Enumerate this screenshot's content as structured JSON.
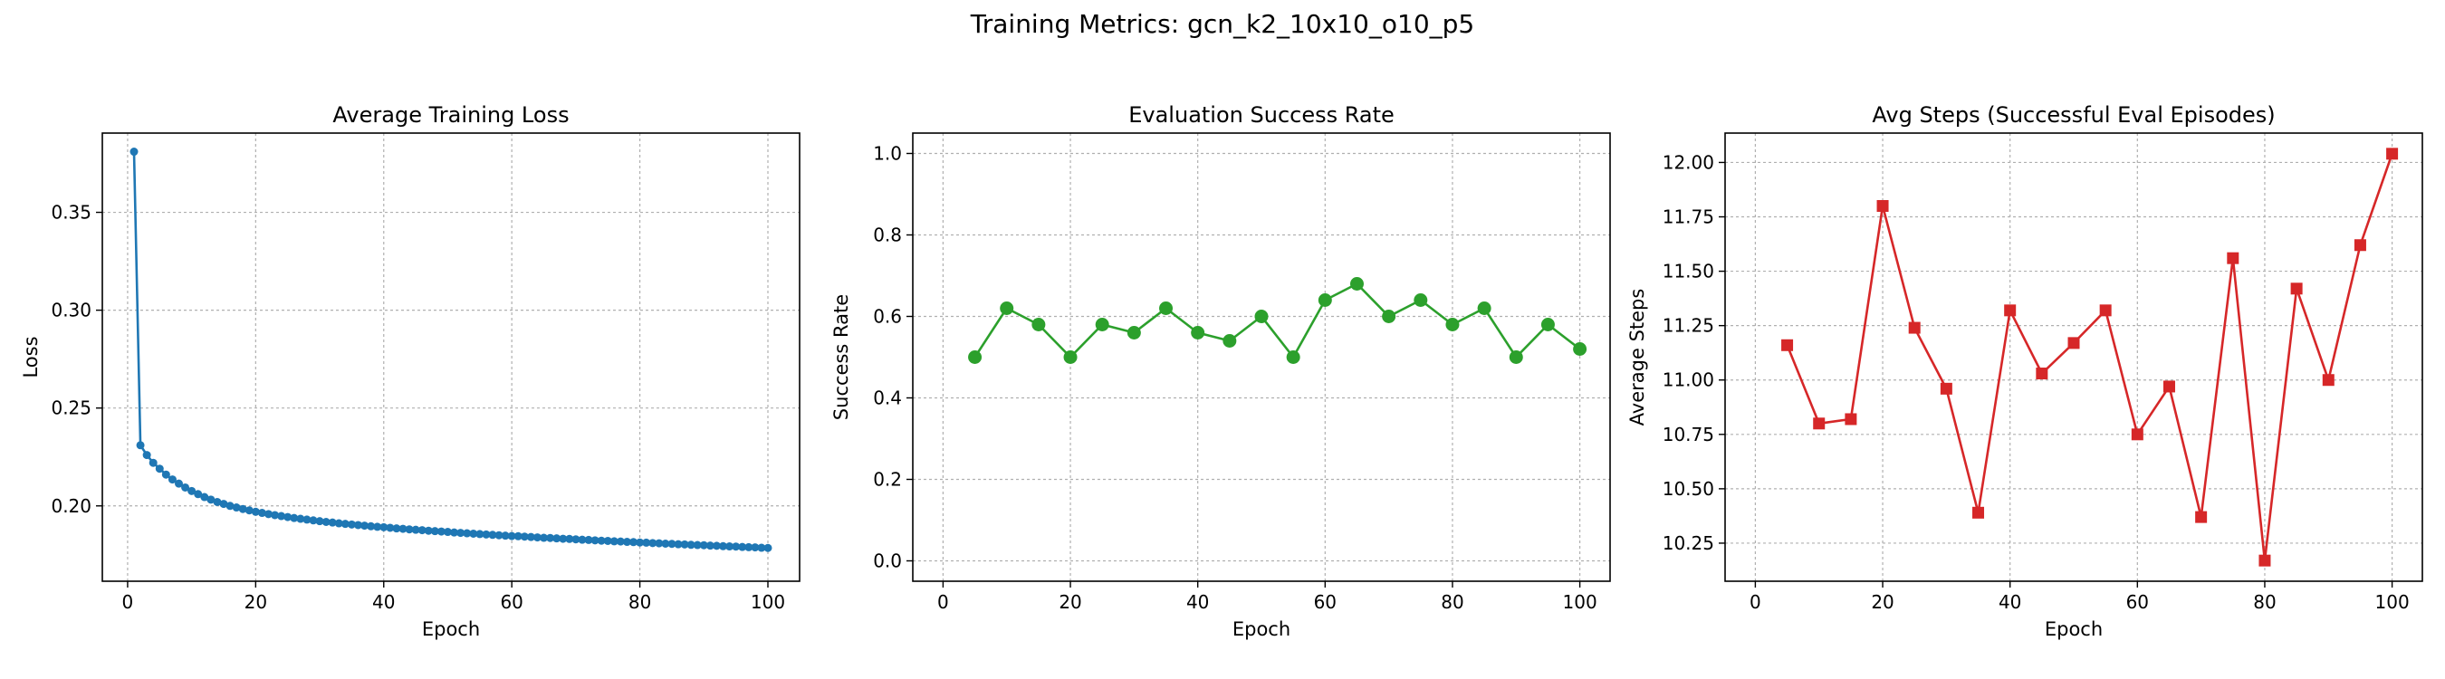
{
  "figure_title": "Training Metrics: gcn_k2_10x10_o10_p5",
  "chart_data": [
    {
      "type": "line",
      "title": "Average Training Loss",
      "xlabel": "Epoch",
      "ylabel": "Loss",
      "xlim": [
        -3.95,
        104.95
      ],
      "ylim": [
        0.1615,
        0.3905
      ],
      "xticks": [
        0,
        20,
        40,
        60,
        80,
        100
      ],
      "yticks": [
        0.2,
        0.25,
        0.3,
        0.35
      ],
      "ytick_decimals": 2,
      "grid": true,
      "marker": "circle",
      "marker_size": 4.5,
      "line_width": 2.6,
      "color": "#1f77b4",
      "series": [
        {
          "x": [
            1,
            2,
            3,
            4,
            5,
            6,
            7,
            8,
            9,
            10,
            11,
            12,
            13,
            14,
            15,
            16,
            17,
            18,
            19,
            20,
            21,
            22,
            23,
            24,
            25,
            26,
            27,
            28,
            29,
            30,
            31,
            32,
            33,
            34,
            35,
            36,
            37,
            38,
            39,
            40,
            41,
            42,
            43,
            44,
            45,
            46,
            47,
            48,
            49,
            50,
            51,
            52,
            53,
            54,
            55,
            56,
            57,
            58,
            59,
            60,
            61,
            62,
            63,
            64,
            65,
            66,
            67,
            68,
            69,
            70,
            71,
            72,
            73,
            74,
            75,
            76,
            77,
            78,
            79,
            80,
            81,
            82,
            83,
            84,
            85,
            86,
            87,
            88,
            89,
            90,
            91,
            92,
            93,
            94,
            95,
            96,
            97,
            98,
            99,
            100
          ],
          "y": [
            0.381,
            0.231,
            0.226,
            0.222,
            0.219,
            0.216,
            0.2135,
            0.2114,
            0.2094,
            0.2076,
            0.206,
            0.2045,
            0.2032,
            0.202,
            0.201,
            0.2,
            0.1992,
            0.1984,
            0.1977,
            0.197,
            0.1964,
            0.1958,
            0.1953,
            0.1948,
            0.1943,
            0.1938,
            0.1934,
            0.193,
            0.1926,
            0.1922,
            0.1918,
            0.1915,
            0.1911,
            0.1908,
            0.1905,
            0.1902,
            0.1899,
            0.1896,
            0.1893,
            0.1891,
            0.1888,
            0.1885,
            0.1883,
            0.188,
            0.1878,
            0.1876,
            0.1873,
            0.1871,
            0.1869,
            0.1867,
            0.1864,
            0.1862,
            0.186,
            0.1858,
            0.1856,
            0.1854,
            0.1852,
            0.185,
            0.1848,
            0.1846,
            0.1845,
            0.1843,
            0.1841,
            0.1839,
            0.1837,
            0.1836,
            0.1834,
            0.1832,
            0.1831,
            0.1829,
            0.1827,
            0.1826,
            0.1824,
            0.1822,
            0.1821,
            0.1819,
            0.1818,
            0.1816,
            0.1815,
            0.1813,
            0.1812,
            0.181,
            0.1809,
            0.1807,
            0.1806,
            0.1804,
            0.1803,
            0.1801,
            0.18,
            0.1799,
            0.1797,
            0.1796,
            0.1794,
            0.1793,
            0.1792,
            0.179,
            0.1789,
            0.1788,
            0.1786,
            0.1785
          ]
        }
      ]
    },
    {
      "type": "line",
      "title": "Evaluation Success Rate",
      "xlabel": "Epoch",
      "ylabel": "Success Rate",
      "xlim": [
        -4.75,
        104.75
      ],
      "ylim": [
        -0.05,
        1.05
      ],
      "xticks": [
        0,
        20,
        40,
        60,
        80,
        100
      ],
      "yticks": [
        0.0,
        0.2,
        0.4,
        0.6,
        0.8,
        1.0
      ],
      "ytick_decimals": 1,
      "grid": true,
      "marker": "circle",
      "marker_size": 7.5,
      "line_width": 2.6,
      "color": "#2ca02c",
      "series": [
        {
          "x": [
            5,
            10,
            15,
            20,
            25,
            30,
            35,
            40,
            45,
            50,
            55,
            60,
            65,
            70,
            75,
            80,
            85,
            90,
            95,
            100
          ],
          "y": [
            0.5,
            0.62,
            0.58,
            0.5,
            0.58,
            0.56,
            0.62,
            0.56,
            0.54,
            0.6,
            0.5,
            0.64,
            0.68,
            0.6,
            0.64,
            0.58,
            0.62,
            0.5,
            0.58,
            0.52
          ]
        }
      ]
    },
    {
      "type": "line",
      "title": "Avg Steps (Successful Eval Episodes)",
      "xlabel": "Epoch",
      "ylabel": "Average Steps",
      "xlim": [
        -4.75,
        104.75
      ],
      "ylim": [
        10.075,
        12.135
      ],
      "xticks": [
        0,
        20,
        40,
        60,
        80,
        100
      ],
      "yticks": [
        10.25,
        10.5,
        10.75,
        11.0,
        11.25,
        11.5,
        11.75,
        12.0
      ],
      "ytick_decimals": 2,
      "grid": true,
      "marker": "square",
      "marker_size": 6.5,
      "line_width": 2.6,
      "color": "#d62728",
      "series": [
        {
          "x": [
            5,
            10,
            15,
            20,
            25,
            30,
            35,
            40,
            45,
            50,
            55,
            60,
            65,
            70,
            75,
            80,
            85,
            90,
            95,
            100
          ],
          "y": [
            11.16,
            10.8,
            10.82,
            11.8,
            11.24,
            10.96,
            10.39,
            11.32,
            11.03,
            11.17,
            11.32,
            10.75,
            10.97,
            10.37,
            11.56,
            10.17,
            11.42,
            11.0,
            11.62,
            12.04
          ]
        }
      ]
    }
  ]
}
